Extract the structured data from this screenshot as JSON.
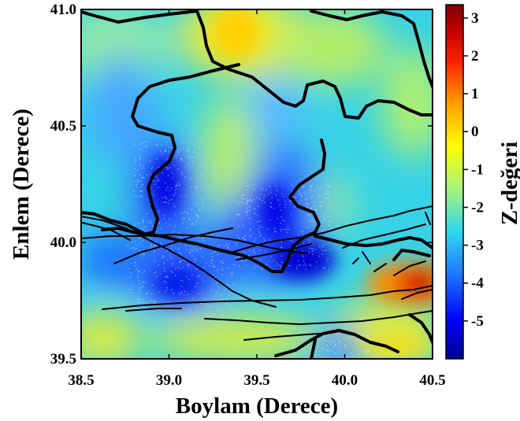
{
  "axes": {
    "xlabel": "Boylam (Derece)",
    "ylabel": "Enlem (Derece)",
    "xlim": [
      38.5,
      40.5
    ],
    "ylim": [
      39.5,
      41.0
    ],
    "xticks": [
      "38.5",
      "39.0",
      "39.5",
      "40.0",
      "40.5"
    ],
    "yticks": [
      "39.5",
      "40.0",
      "40.5",
      "41.0"
    ]
  },
  "colorbar": {
    "title": "Z-değeri",
    "range": [
      -6,
      3.35
    ],
    "ticks": [
      "3",
      "2",
      "1",
      "0",
      "-1",
      "-2",
      "-3",
      "-4",
      "-5"
    ],
    "colors": [
      "#00008f",
      "#0000ff",
      "#1f78ff",
      "#2fd8ef",
      "#a6f37a",
      "#ffff00",
      "#ffa000",
      "#ff2000",
      "#c00000",
      "#800000"
    ]
  },
  "map": {
    "background_color": "#37d2e6",
    "features": [
      "province-borders",
      "fault-lines",
      "seismicity-points"
    ]
  }
}
